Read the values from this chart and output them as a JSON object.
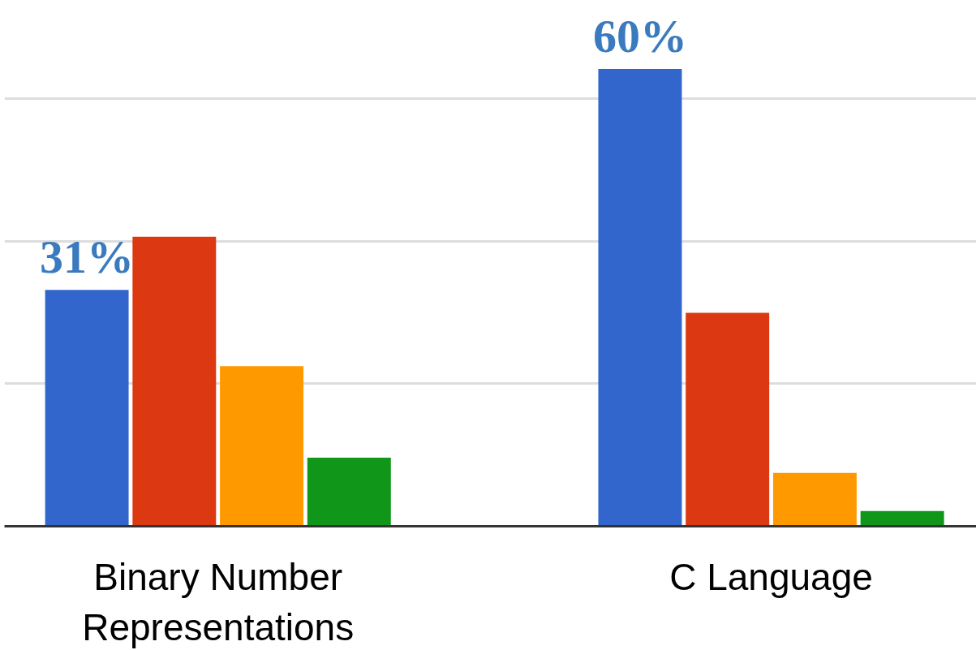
{
  "chart_data": {
    "type": "bar",
    "categories": [
      "Binary Number\nRepresentations",
      "C Language"
    ],
    "series": [
      {
        "color": "#3366cc",
        "values": [
          31,
          60
        ],
        "value_labels": [
          "31%",
          "60%"
        ]
      },
      {
        "color": "#dc3912",
        "values": [
          38,
          28
        ]
      },
      {
        "color": "#ff9900",
        "values": [
          21,
          7
        ]
      },
      {
        "color": "#109618",
        "values": [
          9,
          2
        ]
      }
    ],
    "yticks": [
      {
        "value": 0,
        "label": null
      },
      {
        "value": 18.7,
        "label": null
      },
      {
        "value": 37.4,
        "label": null
      },
      {
        "value": 56.1,
        "label": null
      }
    ],
    "grid": "y",
    "tick_labels": "x"
  }
}
